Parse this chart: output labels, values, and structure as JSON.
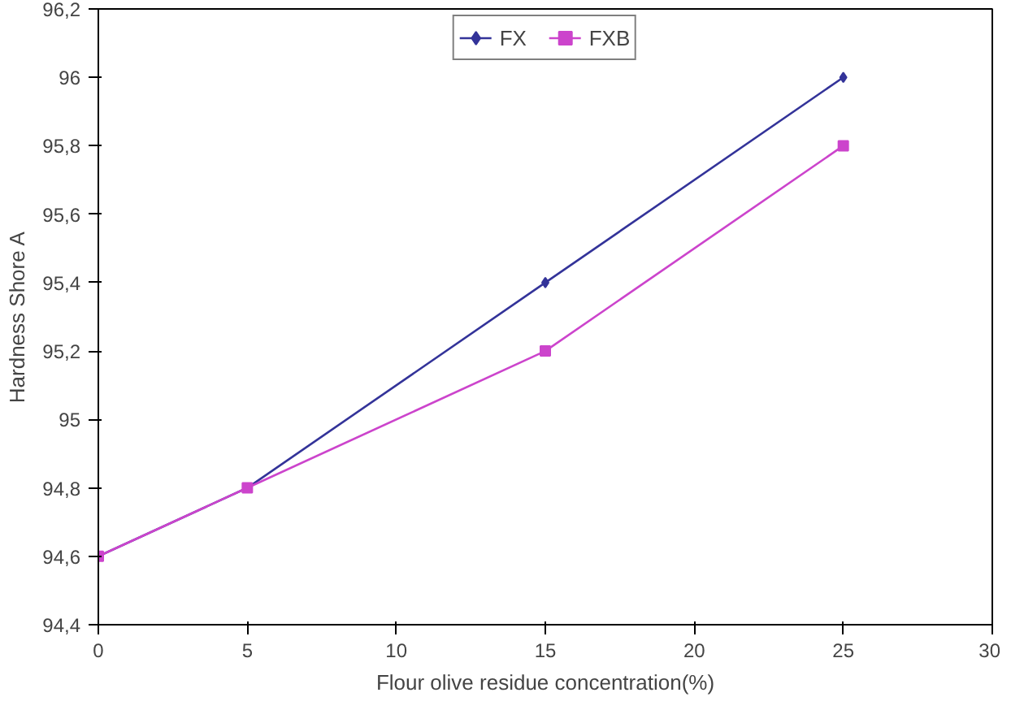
{
  "chart_data": {
    "type": "line",
    "xlabel": "Flour olive residue concentration(%)",
    "ylabel": "Hardness Shore A",
    "x": [
      0,
      5,
      15,
      25
    ],
    "series": [
      {
        "name": "FX",
        "color": "#333399",
        "values": [
          94.6,
          94.8,
          95.4,
          96
        ],
        "marker": "diamond"
      },
      {
        "name": "FXB",
        "color": "#cc44cc",
        "values": [
          94.6,
          94.8,
          95.2,
          95.8
        ],
        "marker": "square"
      }
    ],
    "xlim": [
      0,
      30
    ],
    "xticks": [
      0,
      5,
      10,
      15,
      20,
      25,
      30
    ],
    "ylim": [
      94.4,
      96.2
    ],
    "yticks": [
      {
        "value": 94.4,
        "label": "94,4"
      },
      {
        "value": 94.6,
        "label": "94,6"
      },
      {
        "value": 94.8,
        "label": "94,8"
      },
      95,
      {
        "value": 95.2,
        "label": "95,2"
      },
      {
        "value": 95.4,
        "label": "95,4"
      },
      {
        "value": 95.6,
        "label": "95,6"
      },
      {
        "value": 95.8,
        "label": "95,8"
      },
      96,
      {
        "value": 96.2,
        "label": "96,2"
      }
    ],
    "grid": false,
    "legend": "top",
    "line_style": "solid"
  }
}
